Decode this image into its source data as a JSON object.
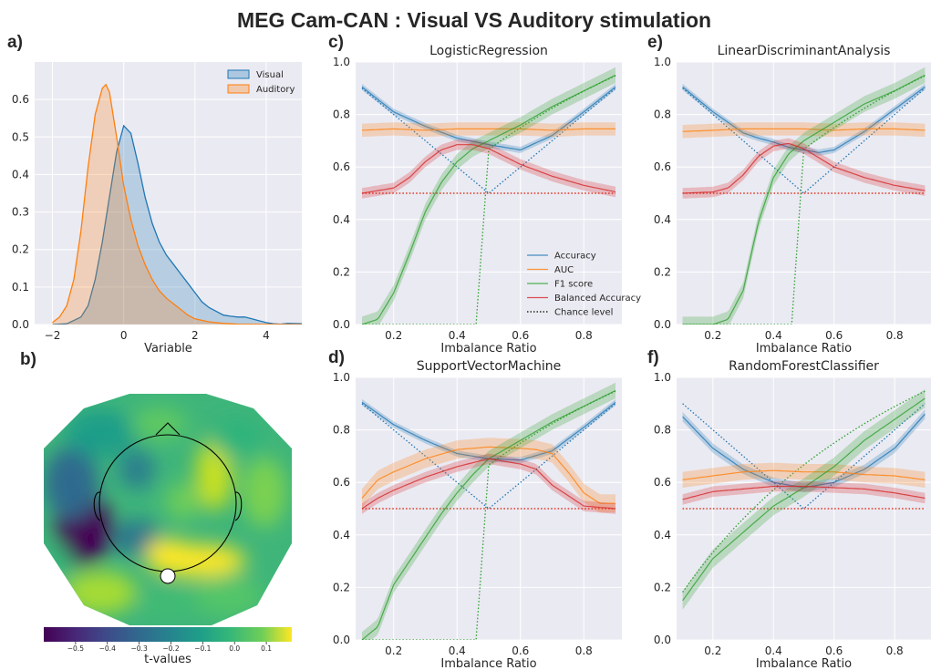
{
  "title": "MEG Cam-CAN : Visual VS Auditory stimulation",
  "colors": {
    "blue": "#1f77b4",
    "orange": "#ff7f0e",
    "green": "#2ca02c",
    "red": "#d62728",
    "panel_bg": "#eaeaf2",
    "grid": "#ffffff"
  },
  "chart_data": [
    {
      "id": "kde",
      "panel_label": "a)",
      "type": "area",
      "title": "",
      "xlabel": "Variable",
      "ylabel": "",
      "xlim": [
        -2.5,
        5
      ],
      "ylim": [
        0,
        0.7
      ],
      "xticks": [
        -2,
        0,
        2,
        4
      ],
      "yticks": [
        0.0,
        0.1,
        0.2,
        0.3,
        0.4,
        0.5,
        0.6
      ],
      "legend": "top-right",
      "series": [
        {
          "name": "Visual",
          "color": "blue",
          "x": [
            -2,
            -1.6,
            -1.2,
            -1.0,
            -0.8,
            -0.6,
            -0.4,
            -0.2,
            0,
            0.2,
            0.4,
            0.6,
            0.8,
            1.0,
            1.2,
            1.4,
            1.6,
            1.8,
            2.0,
            2.2,
            2.4,
            2.6,
            2.8,
            3.0,
            3.2,
            3.4,
            3.6,
            3.8,
            4.0,
            4.2,
            4.4,
            4.6,
            5.0
          ],
          "y": [
            0,
            0.002,
            0.02,
            0.05,
            0.12,
            0.22,
            0.34,
            0.46,
            0.53,
            0.51,
            0.43,
            0.34,
            0.27,
            0.22,
            0.185,
            0.16,
            0.135,
            0.11,
            0.085,
            0.06,
            0.045,
            0.035,
            0.025,
            0.022,
            0.02,
            0.02,
            0.015,
            0.01,
            0.005,
            0.002,
            0.001,
            0.003,
            0.002
          ]
        },
        {
          "name": "Auditory",
          "color": "orange",
          "x": [
            -2.0,
            -1.8,
            -1.6,
            -1.4,
            -1.2,
            -1.0,
            -0.8,
            -0.6,
            -0.5,
            -0.4,
            -0.2,
            0,
            0.2,
            0.4,
            0.6,
            0.8,
            1.0,
            1.2,
            1.4,
            1.6,
            1.8,
            2.0,
            2.4,
            2.8,
            3.2,
            5.0
          ],
          "y": [
            0.005,
            0.02,
            0.05,
            0.12,
            0.25,
            0.42,
            0.56,
            0.63,
            0.64,
            0.62,
            0.5,
            0.37,
            0.28,
            0.21,
            0.16,
            0.12,
            0.09,
            0.07,
            0.055,
            0.04,
            0.025,
            0.015,
            0.007,
            0.003,
            0.001,
            0
          ]
        }
      ]
    },
    {
      "id": "topomap",
      "panel_label": "b)",
      "type": "heatmap",
      "colorbar_label": "t-values",
      "colorbar_range": [
        -0.6,
        0.18
      ],
      "colorbar_ticks": [
        "−0.5",
        "−0.4",
        "−0.3",
        "−0.2",
        "−0.1",
        "0.0",
        "0.1"
      ],
      "colorbar_tick_values": [
        -0.5,
        -0.4,
        -0.3,
        -0.2,
        -0.1,
        0.0,
        0.1
      ]
    },
    {
      "id": "lr",
      "panel_label": "c)",
      "type": "line",
      "title": "LogisticRegression",
      "xlabel": "Imbalance Ratio",
      "ylabel": "",
      "xlim": [
        0.08,
        0.92
      ],
      "ylim": [
        0,
        1.0
      ],
      "xticks": [
        "0.2",
        "0.4",
        "0.6",
        "0.8"
      ],
      "yticks": [
        "0.0",
        "0.2",
        "0.4",
        "0.6",
        "0.8",
        "1.0"
      ],
      "legend": "lower-right",
      "legend_entries": [
        "Accuracy",
        "AUC",
        "F1 score",
        "Balanced Accuracy",
        "Chance level"
      ],
      "series": [
        {
          "name": "Accuracy",
          "color": "blue",
          "x": [
            0.1,
            0.2,
            0.3,
            0.4,
            0.5,
            0.6,
            0.7,
            0.8,
            0.9
          ],
          "y": [
            0.905,
            0.81,
            0.755,
            0.71,
            0.685,
            0.665,
            0.72,
            0.81,
            0.905
          ],
          "band": 0.012
        },
        {
          "name": "AUC",
          "color": "orange",
          "x": [
            0.1,
            0.2,
            0.3,
            0.4,
            0.5,
            0.6,
            0.7,
            0.8,
            0.9
          ],
          "y": [
            0.74,
            0.745,
            0.74,
            0.745,
            0.745,
            0.745,
            0.74,
            0.745,
            0.745
          ],
          "band": 0.025
        },
        {
          "name": "F1 score",
          "color": "green",
          "x": [
            0.1,
            0.15,
            0.2,
            0.25,
            0.3,
            0.35,
            0.4,
            0.45,
            0.5,
            0.6,
            0.7,
            0.8,
            0.9
          ],
          "y": [
            0.0,
            0.02,
            0.12,
            0.27,
            0.43,
            0.54,
            0.62,
            0.67,
            0.7,
            0.76,
            0.83,
            0.89,
            0.95
          ],
          "band": 0.03
        },
        {
          "name": "Balanced Accuracy",
          "color": "red",
          "x": [
            0.1,
            0.2,
            0.25,
            0.3,
            0.35,
            0.4,
            0.45,
            0.5,
            0.6,
            0.7,
            0.8,
            0.9
          ],
          "y": [
            0.5,
            0.52,
            0.56,
            0.62,
            0.665,
            0.685,
            0.685,
            0.67,
            0.61,
            0.565,
            0.53,
            0.505
          ],
          "band": 0.02
        },
        {
          "name": "Chance level",
          "role": "chance"
        }
      ]
    },
    {
      "id": "lda",
      "panel_label": "e)",
      "type": "line",
      "title": "LinearDiscriminantAnalysis",
      "xlabel": "Imbalance Ratio",
      "ylabel": "",
      "xlim": [
        0.08,
        0.92
      ],
      "ylim": [
        0,
        1.0
      ],
      "xticks": [
        "0.2",
        "0.4",
        "0.6",
        "0.8"
      ],
      "yticks": [
        "0.0",
        "0.2",
        "0.4",
        "0.6",
        "0.8",
        "1.0"
      ],
      "series": [
        {
          "name": "Accuracy",
          "color": "blue",
          "x": [
            0.1,
            0.2,
            0.3,
            0.35,
            0.4,
            0.45,
            0.5,
            0.55,
            0.6,
            0.7,
            0.8,
            0.9
          ],
          "y": [
            0.905,
            0.81,
            0.73,
            0.71,
            0.695,
            0.675,
            0.665,
            0.655,
            0.665,
            0.735,
            0.82,
            0.905
          ],
          "band": 0.012
        },
        {
          "name": "AUC",
          "color": "orange",
          "x": [
            0.1,
            0.2,
            0.3,
            0.4,
            0.5,
            0.6,
            0.7,
            0.8,
            0.9
          ],
          "y": [
            0.735,
            0.74,
            0.745,
            0.745,
            0.745,
            0.74,
            0.745,
            0.745,
            0.74
          ],
          "band": 0.025
        },
        {
          "name": "F1 score",
          "color": "green",
          "x": [
            0.1,
            0.2,
            0.25,
            0.3,
            0.35,
            0.4,
            0.45,
            0.5,
            0.6,
            0.7,
            0.8,
            0.9
          ],
          "y": [
            0.0,
            0.0,
            0.02,
            0.13,
            0.39,
            0.56,
            0.65,
            0.7,
            0.77,
            0.84,
            0.89,
            0.95
          ],
          "band": 0.03
        },
        {
          "name": "Balanced Accuracy",
          "color": "red",
          "x": [
            0.1,
            0.2,
            0.25,
            0.3,
            0.35,
            0.4,
            0.45,
            0.5,
            0.6,
            0.7,
            0.8,
            0.9
          ],
          "y": [
            0.5,
            0.505,
            0.52,
            0.57,
            0.64,
            0.68,
            0.69,
            0.67,
            0.6,
            0.56,
            0.53,
            0.51
          ],
          "band": 0.02
        },
        {
          "name": "Chance level",
          "role": "chance"
        }
      ]
    },
    {
      "id": "svm",
      "panel_label": "d)",
      "type": "line",
      "title": "SupportVectorMachine",
      "xlabel": "Imbalance Ratio",
      "ylabel": "",
      "xlim": [
        0.08,
        0.92
      ],
      "ylim": [
        0,
        1.0
      ],
      "xticks": [
        "0.2",
        "0.4",
        "0.6",
        "0.8"
      ],
      "yticks": [
        "0.0",
        "0.2",
        "0.4",
        "0.6",
        "0.8",
        "1.0"
      ],
      "series": [
        {
          "name": "Accuracy",
          "color": "blue",
          "x": [
            0.1,
            0.2,
            0.3,
            0.4,
            0.5,
            0.6,
            0.7,
            0.8,
            0.9
          ],
          "y": [
            0.905,
            0.82,
            0.76,
            0.71,
            0.69,
            0.685,
            0.72,
            0.81,
            0.905
          ],
          "band": 0.012
        },
        {
          "name": "AUC",
          "color": "orange",
          "x": [
            0.1,
            0.15,
            0.2,
            0.3,
            0.4,
            0.5,
            0.6,
            0.65,
            0.7,
            0.75,
            0.8,
            0.85,
            0.9
          ],
          "y": [
            0.54,
            0.61,
            0.64,
            0.69,
            0.725,
            0.735,
            0.73,
            0.725,
            0.71,
            0.64,
            0.56,
            0.52,
            0.52
          ],
          "band": 0.035
        },
        {
          "name": "F1 score",
          "color": "green",
          "x": [
            0.1,
            0.15,
            0.2,
            0.25,
            0.3,
            0.35,
            0.4,
            0.45,
            0.5,
            0.6,
            0.7,
            0.8,
            0.9
          ],
          "y": [
            0.0,
            0.05,
            0.21,
            0.3,
            0.39,
            0.48,
            0.56,
            0.63,
            0.69,
            0.76,
            0.83,
            0.89,
            0.95
          ],
          "band": 0.03
        },
        {
          "name": "Balanced Accuracy",
          "color": "red",
          "x": [
            0.1,
            0.15,
            0.2,
            0.3,
            0.4,
            0.5,
            0.6,
            0.65,
            0.7,
            0.75,
            0.8,
            0.9
          ],
          "y": [
            0.5,
            0.54,
            0.57,
            0.62,
            0.66,
            0.69,
            0.67,
            0.65,
            0.59,
            0.55,
            0.51,
            0.5
          ],
          "band": 0.02
        },
        {
          "name": "Chance level",
          "role": "chance"
        }
      ]
    },
    {
      "id": "rf",
      "panel_label": "f)",
      "type": "line",
      "title": "RandomForestClassifier",
      "xlabel": "Imbalance Ratio",
      "ylabel": "",
      "xlim": [
        0.08,
        0.92
      ],
      "ylim": [
        0,
        1.0
      ],
      "xticks": [
        "0.2",
        "0.4",
        "0.6",
        "0.8"
      ],
      "yticks": [
        "0.0",
        "0.2",
        "0.4",
        "0.6",
        "0.8",
        "1.0"
      ],
      "series": [
        {
          "name": "Accuracy",
          "color": "blue",
          "x": [
            0.1,
            0.2,
            0.3,
            0.4,
            0.5,
            0.6,
            0.7,
            0.8,
            0.9
          ],
          "y": [
            0.85,
            0.73,
            0.65,
            0.6,
            0.58,
            0.6,
            0.65,
            0.73,
            0.86
          ],
          "band": 0.018
        },
        {
          "name": "AUC",
          "color": "orange",
          "x": [
            0.1,
            0.2,
            0.3,
            0.4,
            0.5,
            0.6,
            0.7,
            0.8,
            0.9
          ],
          "y": [
            0.61,
            0.625,
            0.64,
            0.645,
            0.64,
            0.64,
            0.63,
            0.625,
            0.61
          ],
          "band": 0.03
        },
        {
          "name": "F1 score",
          "color": "green",
          "x": [
            0.1,
            0.2,
            0.3,
            0.4,
            0.5,
            0.6,
            0.7,
            0.8,
            0.9
          ],
          "y": [
            0.15,
            0.31,
            0.41,
            0.51,
            0.58,
            0.66,
            0.76,
            0.84,
            0.92
          ],
          "band": 0.035
        },
        {
          "name": "Balanced Accuracy",
          "color": "red",
          "x": [
            0.1,
            0.2,
            0.3,
            0.4,
            0.5,
            0.6,
            0.7,
            0.8,
            0.9
          ],
          "y": [
            0.535,
            0.565,
            0.575,
            0.585,
            0.585,
            0.58,
            0.575,
            0.56,
            0.54
          ],
          "band": 0.02
        },
        {
          "name": "Chance level",
          "role": "chance"
        }
      ]
    }
  ]
}
